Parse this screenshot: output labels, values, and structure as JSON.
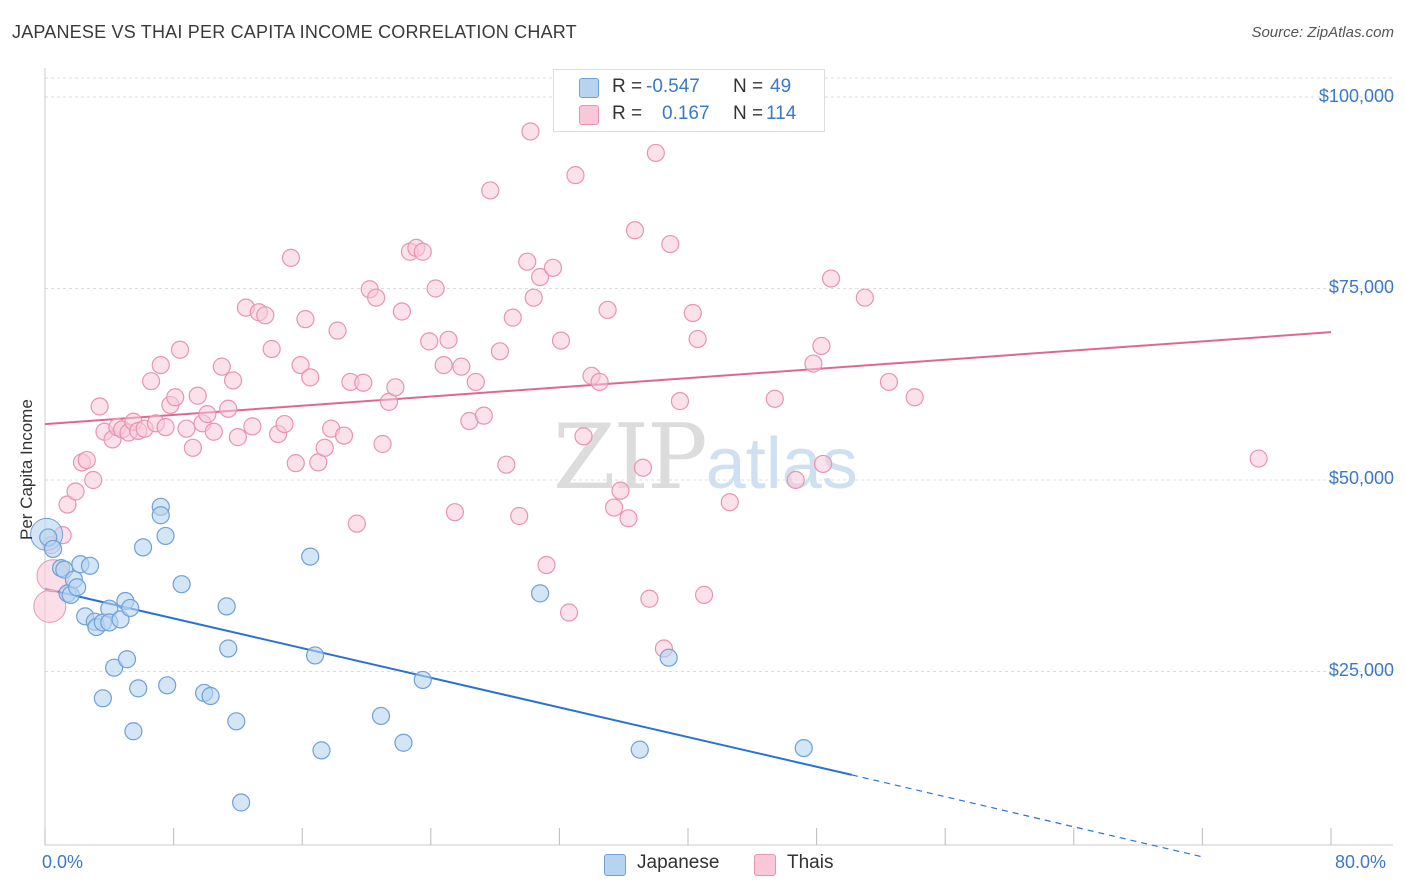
{
  "title": "JAPANESE VS THAI PER CAPITA INCOME CORRELATION CHART",
  "source": "Source: ZipAtlas.com",
  "watermark": {
    "zip": "ZIP",
    "atlas": "atlas"
  },
  "legend": {
    "japanese": {
      "r_label": "R =",
      "r_value": "-0.547",
      "n_label": "N =",
      "n_value": "49"
    },
    "thais": {
      "r_label": "R =",
      "r_value": "0.167",
      "n_label": "N =",
      "n_value": "114"
    }
  },
  "colors": {
    "japanese_fill": "#b8d3f0",
    "japanese_stroke": "#6fa0d8",
    "japanese_line": "#2a72d2",
    "thai_fill": "#f8c8d8",
    "thai_stroke": "#ea93b1",
    "thai_line": "#e0688f",
    "grid": "#dddddd",
    "axis_text": "#3a78c9"
  },
  "chart_data": {
    "type": "scatter",
    "title": "JAPANESE VS THAI PER CAPITA INCOME CORRELATION CHART",
    "xlabel": "",
    "ylabel": "Per Capita Income",
    "xlim": [
      0,
      80
    ],
    "ylim": [
      0,
      105000
    ],
    "x_tick_labels": {
      "left": "0.0%",
      "right": "80.0%"
    },
    "y_ticks": [
      {
        "value": 25000,
        "label": "$25,000"
      },
      {
        "value": 50000,
        "label": "$50,000"
      },
      {
        "value": 75000,
        "label": "$75,000"
      },
      {
        "value": 100000,
        "label": "$100,000"
      }
    ],
    "series": [
      {
        "name": "Japanese",
        "trend": {
          "x0": 0,
          "y0": 35800,
          "x1": 50.2,
          "y1": 11500,
          "dash_to_x": 72.0,
          "dash_to_y": 800
        },
        "points": [
          [
            0.2,
            42500
          ],
          [
            0.5,
            41000
          ],
          [
            1.0,
            38500
          ],
          [
            1.2,
            38300
          ],
          [
            1.4,
            35200
          ],
          [
            1.6,
            35000
          ],
          [
            1.8,
            37000
          ],
          [
            2.0,
            36000
          ],
          [
            2.2,
            39000
          ],
          [
            2.5,
            32200
          ],
          [
            2.8,
            38800
          ],
          [
            3.1,
            31500
          ],
          [
            3.2,
            30800
          ],
          [
            3.6,
            31400
          ],
          [
            3.6,
            21500
          ],
          [
            4.0,
            33200
          ],
          [
            4.0,
            31400
          ],
          [
            4.3,
            25500
          ],
          [
            4.7,
            31800
          ],
          [
            5.0,
            34200
          ],
          [
            5.1,
            26600
          ],
          [
            5.3,
            33300
          ],
          [
            5.5,
            17200
          ],
          [
            5.8,
            22800
          ],
          [
            6.1,
            41200
          ],
          [
            7.2,
            46500
          ],
          [
            7.2,
            45400
          ],
          [
            7.5,
            42700
          ],
          [
            7.6,
            23200
          ],
          [
            8.5,
            36400
          ],
          [
            9.9,
            22200
          ],
          [
            10.3,
            21800
          ],
          [
            11.3,
            33500
          ],
          [
            11.4,
            28000
          ],
          [
            11.9,
            18500
          ],
          [
            12.2,
            7900
          ],
          [
            16.5,
            40000
          ],
          [
            16.8,
            27100
          ],
          [
            17.2,
            14700
          ],
          [
            20.9,
            19200
          ],
          [
            22.3,
            15700
          ],
          [
            23.5,
            23900
          ],
          [
            30.8,
            35200
          ],
          [
            37.0,
            14800
          ],
          [
            38.8,
            26800
          ],
          [
            47.2,
            15000
          ]
        ],
        "big_points": [
          [
            0.1,
            42900
          ]
        ]
      },
      {
        "name": "Thais",
        "trend": {
          "x0": 0,
          "y0": 57300,
          "x1": 80,
          "y1": 69300
        },
        "points": [
          [
            0.4,
            41500
          ],
          [
            1.1,
            42800
          ],
          [
            1.4,
            46800
          ],
          [
            1.9,
            48500
          ],
          [
            2.3,
            52300
          ],
          [
            2.6,
            52600
          ],
          [
            3.0,
            50000
          ],
          [
            3.4,
            59600
          ],
          [
            3.7,
            56300
          ],
          [
            4.2,
            55300
          ],
          [
            4.5,
            56900
          ],
          [
            4.8,
            56600
          ],
          [
            5.2,
            56200
          ],
          [
            5.5,
            57600
          ],
          [
            5.8,
            56400
          ],
          [
            6.2,
            56700
          ],
          [
            6.6,
            62900
          ],
          [
            6.9,
            57400
          ],
          [
            7.2,
            65000
          ],
          [
            7.5,
            56900
          ],
          [
            7.8,
            59800
          ],
          [
            8.1,
            60800
          ],
          [
            8.4,
            67000
          ],
          [
            8.8,
            56700
          ],
          [
            9.2,
            54200
          ],
          [
            9.5,
            61000
          ],
          [
            9.8,
            57400
          ],
          [
            10.1,
            58600
          ],
          [
            10.5,
            56300
          ],
          [
            11.0,
            64800
          ],
          [
            11.4,
            59300
          ],
          [
            11.7,
            63000
          ],
          [
            12.0,
            55600
          ],
          [
            12.5,
            72500
          ],
          [
            12.9,
            57000
          ],
          [
            13.3,
            71900
          ],
          [
            13.7,
            71500
          ],
          [
            14.1,
            67100
          ],
          [
            14.5,
            56000
          ],
          [
            14.9,
            57300
          ],
          [
            15.3,
            79000
          ],
          [
            15.6,
            52200
          ],
          [
            15.9,
            65000
          ],
          [
            16.2,
            71000
          ],
          [
            16.5,
            63400
          ],
          [
            17.0,
            52300
          ],
          [
            17.4,
            54200
          ],
          [
            17.8,
            56700
          ],
          [
            18.2,
            69500
          ],
          [
            18.6,
            55800
          ],
          [
            19.0,
            62800
          ],
          [
            19.4,
            44300
          ],
          [
            19.8,
            62700
          ],
          [
            20.2,
            74900
          ],
          [
            20.6,
            73800
          ],
          [
            21.0,
            54700
          ],
          [
            21.4,
            60200
          ],
          [
            21.8,
            62100
          ],
          [
            22.2,
            72000
          ],
          [
            22.7,
            79800
          ],
          [
            23.1,
            80300
          ],
          [
            23.5,
            79800
          ],
          [
            23.9,
            68100
          ],
          [
            24.3,
            75000
          ],
          [
            24.8,
            65000
          ],
          [
            25.1,
            68300
          ],
          [
            25.5,
            45800
          ],
          [
            25.9,
            64800
          ],
          [
            26.4,
            57700
          ],
          [
            26.8,
            62800
          ],
          [
            27.3,
            58400
          ],
          [
            27.7,
            87800
          ],
          [
            28.3,
            66800
          ],
          [
            28.7,
            52000
          ],
          [
            29.1,
            71200
          ],
          [
            29.5,
            45300
          ],
          [
            30.0,
            78500
          ],
          [
            30.4,
            73800
          ],
          [
            30.8,
            76500
          ],
          [
            31.2,
            38900
          ],
          [
            31.6,
            77700
          ],
          [
            32.1,
            68200
          ],
          [
            32.6,
            32700
          ],
          [
            33.0,
            89800
          ],
          [
            33.5,
            55700
          ],
          [
            34.0,
            63600
          ],
          [
            34.5,
            62800
          ],
          [
            35.0,
            72200
          ],
          [
            35.4,
            46400
          ],
          [
            35.8,
            48600
          ],
          [
            36.3,
            45000
          ],
          [
            36.7,
            82600
          ],
          [
            37.2,
            51600
          ],
          [
            37.6,
            34500
          ],
          [
            38.0,
            92700
          ],
          [
            38.5,
            28000
          ],
          [
            38.9,
            80800
          ],
          [
            39.5,
            60300
          ],
          [
            40.3,
            71800
          ],
          [
            40.6,
            68400
          ],
          [
            41.0,
            35000
          ],
          [
            42.6,
            47100
          ],
          [
            45.4,
            60600
          ],
          [
            46.7,
            50000
          ],
          [
            47.8,
            65200
          ],
          [
            48.3,
            67500
          ],
          [
            48.4,
            52100
          ],
          [
            48.9,
            76300
          ],
          [
            51.0,
            73800
          ],
          [
            52.5,
            62800
          ],
          [
            54.1,
            60800
          ],
          [
            75.5,
            52800
          ],
          [
            30.2,
            95500
          ]
        ],
        "big_points": [
          [
            0.3,
            33500
          ],
          [
            0.5,
            37500
          ]
        ]
      }
    ]
  },
  "bottom_legend": {
    "japanese": "Japanese",
    "thais": "Thais"
  }
}
